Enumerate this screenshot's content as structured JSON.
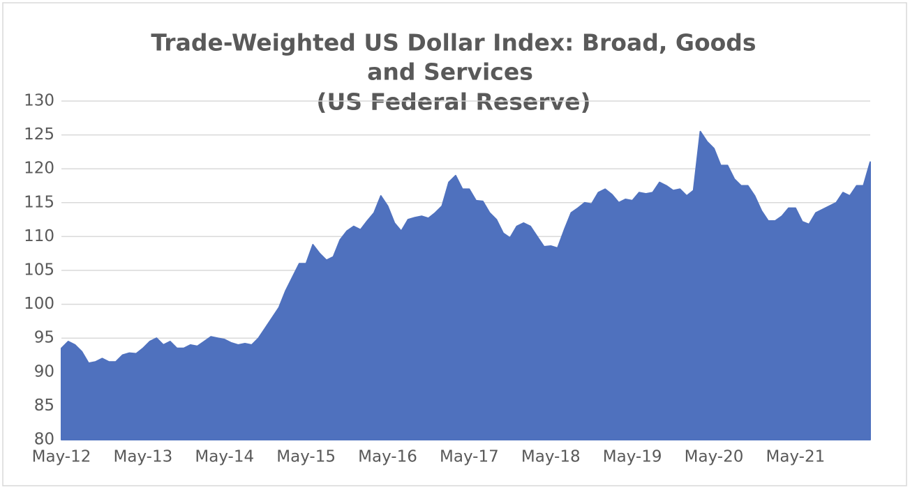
{
  "chart_data": {
    "type": "area",
    "title": [
      "Trade-Weighted US Dollar Index: Broad, Goods",
      "and Services",
      "(US Federal Reserve)"
    ],
    "categories": [
      "May-12",
      null,
      null,
      null,
      null,
      null,
      null,
      null,
      null,
      null,
      null,
      null,
      "May-13",
      null,
      null,
      null,
      null,
      null,
      null,
      null,
      null,
      null,
      null,
      null,
      "May-14",
      null,
      null,
      null,
      null,
      null,
      null,
      null,
      null,
      null,
      null,
      null,
      "May-15",
      null,
      null,
      null,
      null,
      null,
      null,
      null,
      null,
      null,
      null,
      null,
      "May-16",
      null,
      null,
      null,
      null,
      null,
      null,
      null,
      null,
      null,
      null,
      null,
      "May-17",
      null,
      null,
      null,
      null,
      null,
      null,
      null,
      null,
      null,
      null,
      null,
      "May-18",
      null,
      null,
      null,
      null,
      null,
      null,
      null,
      null,
      null,
      null,
      null,
      "May-19",
      null,
      null,
      null,
      null,
      null,
      null,
      null,
      null,
      null,
      null,
      null,
      "May-20",
      null,
      null,
      null,
      null,
      null,
      null,
      null,
      null,
      null,
      null,
      null,
      "May-21",
      null,
      null,
      null,
      null,
      null,
      null,
      null,
      null,
      null,
      null,
      null
    ],
    "values": [
      93.5,
      94.5,
      94,
      93,
      91.3,
      91.5,
      92,
      91.5,
      91.5,
      92.5,
      92.8,
      92.7,
      93.5,
      94.5,
      95,
      94,
      94.5,
      93.5,
      93.5,
      94,
      93.8,
      94.5,
      95.2,
      95,
      94.8,
      94.3,
      94,
      94.2,
      94,
      95,
      96.5,
      98,
      99.5,
      102,
      104,
      106,
      106,
      108.8,
      107.5,
      106.5,
      107,
      109.5,
      110.8,
      111.5,
      111,
      112.3,
      113.5,
      116,
      114.5,
      112,
      110.8,
      112.5,
      112.8,
      113,
      112.7,
      113.5,
      114.5,
      118,
      119,
      117,
      117,
      115.3,
      115.2,
      113.5,
      112.5,
      110.5,
      109.8,
      111.5,
      112,
      111.5,
      110,
      108.5,
      108.6,
      108.3,
      111,
      113.5,
      114.2,
      115,
      114.8,
      116.5,
      117,
      116.2,
      115,
      115.5,
      115.3,
      116.5,
      116.3,
      116.5,
      118,
      117.5,
      116.8,
      117,
      116,
      116.8,
      125.5,
      124,
      123,
      120.5,
      120.5,
      118.5,
      117.5,
      117.5,
      116,
      113.8,
      112.3,
      112.3,
      113,
      114.2,
      114.2,
      112.2,
      111.8,
      113.5,
      114,
      114.5,
      115,
      116.5,
      116,
      117.5,
      117.5,
      121
    ],
    "color": "#4f71be",
    "ylim": [
      80,
      130
    ],
    "yticks": [
      80,
      85,
      90,
      95,
      100,
      105,
      110,
      115,
      120,
      125,
      130
    ],
    "grid": true
  }
}
